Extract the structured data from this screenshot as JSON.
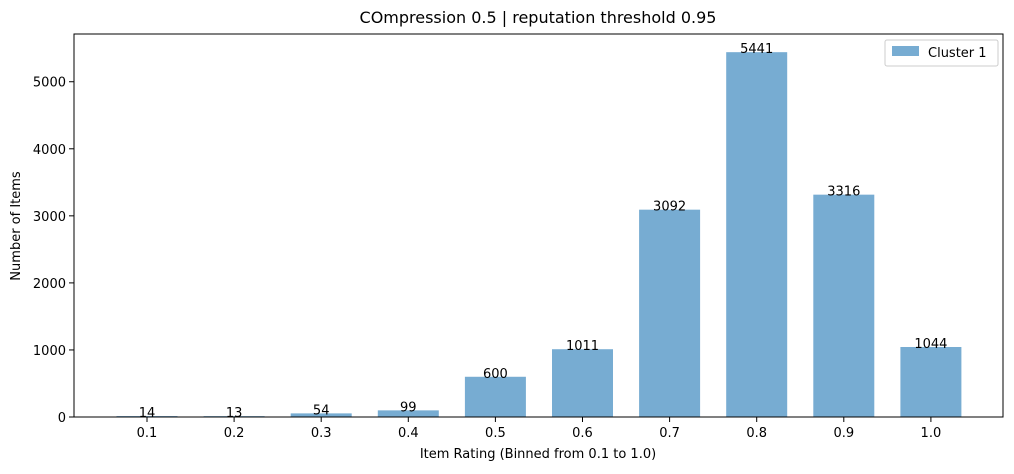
{
  "chart_data": {
    "type": "bar",
    "title": "COmpression 0.5 | reputation threshold 0.95",
    "xlabel": "Item Rating (Binned from 0.1 to 1.0)",
    "ylabel": "Number of Items",
    "categories": [
      "0.1",
      "0.2",
      "0.3",
      "0.4",
      "0.5",
      "0.6",
      "0.7",
      "0.8",
      "0.9",
      "1.0"
    ],
    "series": [
      {
        "name": "Cluster 1",
        "values": [
          14,
          13,
          54,
          99,
          600,
          1011,
          3092,
          5441,
          3316,
          1044
        ],
        "color": "#77acd2"
      }
    ],
    "ylim": [
      0,
      5712
    ],
    "yticks": [
      0,
      1000,
      2000,
      3000,
      4000,
      5000
    ],
    "data_labels": true,
    "grid": false,
    "legend_position": "top-right"
  }
}
